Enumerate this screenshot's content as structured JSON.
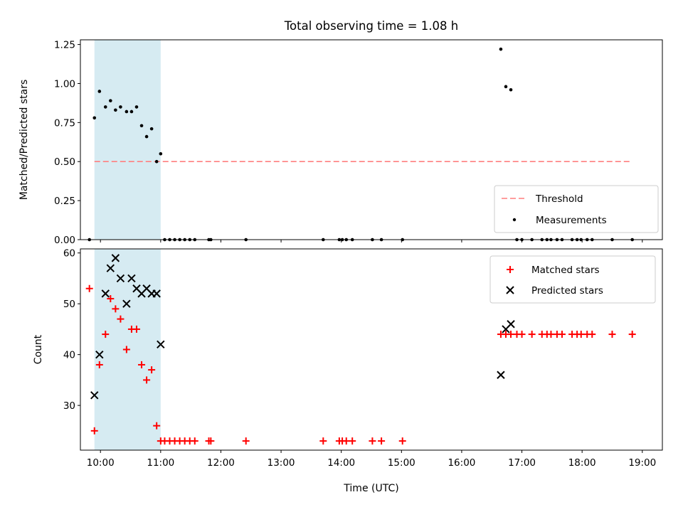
{
  "chart_data": [
    {
      "type": "scatter",
      "title": "Total observing time = 1.08 h",
      "xlabel": "",
      "ylabel": "Matched/Predicted stars",
      "xlim": [
        "09:40",
        "19:20"
      ],
      "ylim": [
        0,
        1.28
      ],
      "yticks": [
        "0.00",
        "0.25",
        "0.50",
        "0.75",
        "1.00",
        "1.25"
      ],
      "highlight_span": [
        "09:54",
        "11:00"
      ],
      "threshold": {
        "name": "Threshold",
        "value": 0.5,
        "x_range": [
          "09:54",
          "18:50"
        ],
        "color": "#ff7f7f",
        "style": "dashed"
      },
      "legend": {
        "placement": "lower right",
        "entries": [
          "Threshold",
          "Measurements"
        ]
      },
      "series": [
        {
          "name": "Measurements",
          "marker": "dot",
          "color": "#000000",
          "points": [
            [
              "09:49",
              0
            ],
            [
              "09:54",
              0.78
            ],
            [
              "09:59",
              0.95
            ],
            [
              "10:05",
              0.85
            ],
            [
              "10:10",
              0.89
            ],
            [
              "10:15",
              0.83
            ],
            [
              "10:20",
              0.85
            ],
            [
              "10:26",
              0.82
            ],
            [
              "10:31",
              0.82
            ],
            [
              "10:36",
              0.85
            ],
            [
              "10:41",
              0.73
            ],
            [
              "10:46",
              0.66
            ],
            [
              "10:51",
              0.71
            ],
            [
              "10:56",
              0.5
            ],
            [
              "11:00",
              0.55
            ],
            [
              "11:04",
              0
            ],
            [
              "11:09",
              0
            ],
            [
              "11:14",
              0
            ],
            [
              "11:19",
              0
            ],
            [
              "11:24",
              0
            ],
            [
              "11:29",
              0
            ],
            [
              "11:34",
              0
            ],
            [
              "11:48",
              0
            ],
            [
              "11:50",
              0
            ],
            [
              "12:25",
              0
            ],
            [
              "13:42",
              0
            ],
            [
              "13:58",
              0
            ],
            [
              "14:01",
              0
            ],
            [
              "14:05",
              0
            ],
            [
              "14:11",
              0
            ],
            [
              "14:31",
              0
            ],
            [
              "14:40",
              0
            ],
            [
              "15:01",
              0
            ],
            [
              "16:39",
              1.22
            ],
            [
              "16:44",
              0.98
            ],
            [
              "16:49",
              0.96
            ],
            [
              "16:55",
              0
            ],
            [
              "17:00",
              0
            ],
            [
              "17:10",
              0
            ],
            [
              "17:20",
              0
            ],
            [
              "17:25",
              0
            ],
            [
              "17:29",
              0
            ],
            [
              "17:35",
              0
            ],
            [
              "17:40",
              0
            ],
            [
              "17:50",
              0
            ],
            [
              "17:55",
              0
            ],
            [
              "17:59",
              0
            ],
            [
              "18:05",
              0
            ],
            [
              "18:10",
              0
            ],
            [
              "18:30",
              0
            ],
            [
              "18:50",
              0
            ]
          ]
        }
      ],
      "grid": false
    },
    {
      "type": "scatter",
      "title": "",
      "xlabel": "Time (UTC)",
      "ylabel": "Count",
      "xlim": [
        "09:40",
        "19:20"
      ],
      "ylim": [
        21.2,
        60.8
      ],
      "xticks": [
        "10:00",
        "11:00",
        "12:00",
        "13:00",
        "14:00",
        "15:00",
        "16:00",
        "17:00",
        "18:00",
        "19:00"
      ],
      "yticks": [
        "30",
        "40",
        "50",
        "60"
      ],
      "highlight_span": [
        "09:54",
        "11:00"
      ],
      "legend": {
        "placement": "upper right",
        "entries": [
          "Matched stars",
          "Predicted stars"
        ]
      },
      "series": [
        {
          "name": "Matched stars",
          "marker": "plus",
          "color": "#ff0000",
          "points": [
            [
              "09:49",
              53
            ],
            [
              "09:54",
              25
            ],
            [
              "09:59",
              38
            ],
            [
              "10:05",
              44
            ],
            [
              "10:10",
              51
            ],
            [
              "10:15",
              49
            ],
            [
              "10:20",
              47
            ],
            [
              "10:26",
              41
            ],
            [
              "10:31",
              45
            ],
            [
              "10:36",
              45
            ],
            [
              "10:41",
              38
            ],
            [
              "10:46",
              35
            ],
            [
              "10:51",
              37
            ],
            [
              "10:56",
              26
            ],
            [
              "11:00",
              23
            ],
            [
              "11:04",
              23
            ],
            [
              "11:09",
              23
            ],
            [
              "11:14",
              23
            ],
            [
              "11:19",
              23
            ],
            [
              "11:24",
              23
            ],
            [
              "11:29",
              23
            ],
            [
              "11:34",
              23
            ],
            [
              "11:48",
              23
            ],
            [
              "11:50",
              23
            ],
            [
              "12:25",
              23
            ],
            [
              "13:42",
              23
            ],
            [
              "13:58",
              23
            ],
            [
              "14:01",
              23
            ],
            [
              "14:05",
              23
            ],
            [
              "14:11",
              23
            ],
            [
              "14:31",
              23
            ],
            [
              "14:40",
              23
            ],
            [
              "15:01",
              23
            ],
            [
              "16:39",
              44
            ],
            [
              "16:44",
              44
            ],
            [
              "16:49",
              44
            ],
            [
              "16:55",
              44
            ],
            [
              "17:00",
              44
            ],
            [
              "17:10",
              44
            ],
            [
              "17:20",
              44
            ],
            [
              "17:25",
              44
            ],
            [
              "17:29",
              44
            ],
            [
              "17:35",
              44
            ],
            [
              "17:40",
              44
            ],
            [
              "17:50",
              44
            ],
            [
              "17:55",
              44
            ],
            [
              "17:59",
              44
            ],
            [
              "18:05",
              44
            ],
            [
              "18:10",
              44
            ],
            [
              "18:30",
              44
            ],
            [
              "18:50",
              44
            ]
          ]
        },
        {
          "name": "Predicted stars",
          "marker": "x",
          "color": "#000000",
          "points": [
            [
              "09:54",
              32
            ],
            [
              "09:59",
              40
            ],
            [
              "10:05",
              52
            ],
            [
              "10:10",
              57
            ],
            [
              "10:15",
              59
            ],
            [
              "10:20",
              55
            ],
            [
              "10:26",
              50
            ],
            [
              "10:31",
              55
            ],
            [
              "10:36",
              53
            ],
            [
              "10:41",
              52
            ],
            [
              "10:46",
              53
            ],
            [
              "10:51",
              52
            ],
            [
              "10:56",
              52
            ],
            [
              "11:00",
              42
            ],
            [
              "16:39",
              36
            ],
            [
              "16:44",
              45
            ],
            [
              "16:49",
              46
            ]
          ]
        }
      ],
      "grid": false
    }
  ]
}
